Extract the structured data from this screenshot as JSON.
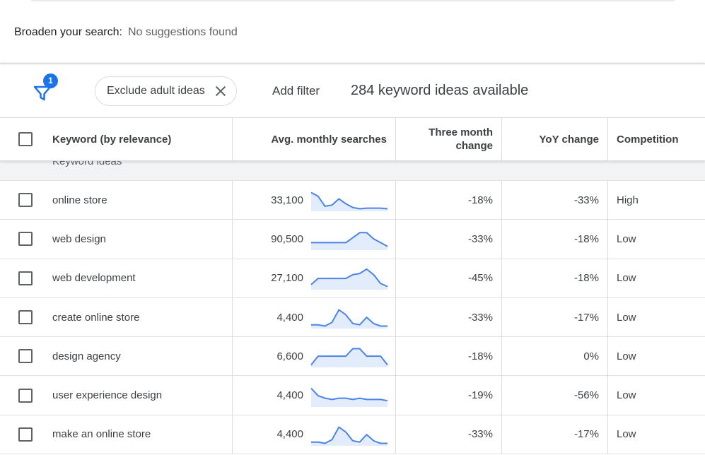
{
  "broaden": {
    "label": "Broaden your search:",
    "hint": "No suggestions found"
  },
  "toolbar": {
    "filter_badge": "1",
    "chip_label": "Exclude adult ideas",
    "add_filter": "Add filter",
    "ideas_count": "284 keyword ideas available"
  },
  "table": {
    "headers": {
      "keyword": "Keyword (by relevance)",
      "avg": "Avg. monthly searches",
      "three_line1": "Three month",
      "three_line2": "change",
      "yoy": "YoY change",
      "competition": "Competition"
    },
    "group_label": "Keyword ideas",
    "rows": [
      {
        "keyword": "online store",
        "avg": "33,100",
        "three": "-18%",
        "yoy": "-33%",
        "competition": "High",
        "trend": [
          30,
          24,
          8,
          10,
          20,
          12,
          6,
          4,
          5,
          5,
          5,
          4
        ]
      },
      {
        "keyword": "web design",
        "avg": "90,500",
        "three": "-33%",
        "yoy": "-18%",
        "competition": "Low",
        "trend": [
          12,
          12,
          12,
          12,
          12,
          12,
          20,
          28,
          28,
          18,
          12,
          6
        ]
      },
      {
        "keyword": "web development",
        "avg": "27,100",
        "three": "-45%",
        "yoy": "-18%",
        "competition": "Low",
        "trend": [
          8,
          18,
          18,
          18,
          18,
          18,
          24,
          26,
          33,
          24,
          10,
          5
        ]
      },
      {
        "keyword": "create online store",
        "avg": "4,400",
        "three": "-33%",
        "yoy": "-17%",
        "competition": "Low",
        "trend": [
          6,
          6,
          4,
          10,
          30,
          22,
          8,
          6,
          18,
          8,
          4,
          4
        ]
      },
      {
        "keyword": "design agency",
        "avg": "6,600",
        "three": "-18%",
        "yoy": "0%",
        "competition": "Low",
        "trend": [
          4,
          18,
          18,
          18,
          18,
          18,
          30,
          30,
          18,
          18,
          18,
          4
        ]
      },
      {
        "keyword": "user experience design",
        "avg": "4,400",
        "three": "-19%",
        "yoy": "-56%",
        "competition": "Low",
        "trend": [
          30,
          18,
          14,
          12,
          14,
          14,
          12,
          14,
          12,
          12,
          12,
          10
        ]
      },
      {
        "keyword": "make an online store",
        "avg": "4,400",
        "three": "-33%",
        "yoy": "-17%",
        "competition": "Low",
        "trend": [
          6,
          6,
          4,
          10,
          30,
          22,
          8,
          6,
          18,
          8,
          4,
          4
        ]
      }
    ]
  },
  "colors": {
    "accent": "#1a73e8",
    "spark_line": "#4a84e8",
    "spark_fill": "#e3ecfb"
  }
}
